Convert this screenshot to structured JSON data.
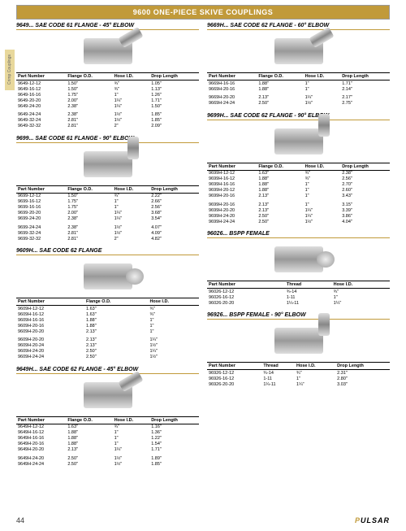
{
  "banner": "9600 ONE-PIECE SKIVE COUPLINGS",
  "sideTab": "Crimp Couplings",
  "pageNum": "44",
  "logo": "PULSAR",
  "cols4": [
    "Part Number",
    "Flange O.D.",
    "Hose I.D.",
    "Drop Length"
  ],
  "cols3": [
    "Part Number",
    "Flange O.D.",
    "Hose I.D."
  ],
  "cols3t": [
    "Part Number",
    "Thread",
    "Hose I.D."
  ],
  "cols4t": [
    "Part Number",
    "Thread",
    "Hose I.D.",
    "Drop Length"
  ],
  "left": [
    {
      "title": "9649...   SAE CODE 61 FLANGE - 45° ELBOW",
      "img": "elbow45",
      "cols": "cols4",
      "gap": [
        5
      ],
      "rows": [
        [
          "9649-12-12",
          "1.50\"",
          "¾\"",
          "1.05\""
        ],
        [
          "9649-16-12",
          "1.50\"",
          "¾\"",
          "1.13\""
        ],
        [
          "9649-16-16",
          "1.75\"",
          "1\"",
          "1.26\""
        ],
        [
          "9649-20-20",
          "2.00\"",
          "1¼\"",
          "1.71\""
        ],
        [
          "9649-24-20",
          "2.38\"",
          "1¼\"",
          "1.50\""
        ],
        [
          "9649-24-24",
          "2.38\"",
          "1½\"",
          "1.85\""
        ],
        [
          "9649-32-24",
          "2.81\"",
          "1½\"",
          "1.85\""
        ],
        [
          "9649-32-32",
          "2.81\"",
          "2\"",
          "2.09\""
        ]
      ]
    },
    {
      "title": "9699...   SAE CODE 61 FLANGE - 90° ELBOW",
      "img": "elbow90",
      "cols": "cols4",
      "gap": [
        5
      ],
      "rows": [
        [
          "9699-12-12",
          "1.50\"",
          "¾\"",
          "2.22\""
        ],
        [
          "9699-16-12",
          "1.75\"",
          "1\"",
          "2.66\""
        ],
        [
          "9699-16-16",
          "1.75\"",
          "1\"",
          "2.56\""
        ],
        [
          "9699-20-20",
          "2.00\"",
          "1¼\"",
          "3.68\""
        ],
        [
          "9699-24-20",
          "2.38\"",
          "1¼\"",
          "3.54\""
        ],
        [
          "9699-24-24",
          "2.38\"",
          "1½\"",
          "4.07\""
        ],
        [
          "9699-32-24",
          "2.81\"",
          "1½\"",
          "4.09\""
        ],
        [
          "9699-32-32",
          "2.81\"",
          "2\"",
          "4.82\""
        ]
      ]
    },
    {
      "title": "9609H...   SAE CODE 62 FLANGE",
      "img": "straight",
      "cols": "cols3",
      "gap": [
        5
      ],
      "rows": [
        [
          "9609H-12-12",
          "1.63\"",
          "¾\""
        ],
        [
          "9609H-16-12",
          "1.63\"",
          "¾\""
        ],
        [
          "9609H-16-16",
          "1.88\"",
          "1\""
        ],
        [
          "9609H-20-16",
          "1.88\"",
          "1\""
        ],
        [
          "9609H-20-20",
          "2.13\"",
          "1\""
        ],
        [
          "9609H-20-20",
          "2.13\"",
          "1¼\""
        ],
        [
          "9609H-20-24",
          "2.13\"",
          "1½\""
        ],
        [
          "9609H-24-20",
          "2.50\"",
          "1¼\""
        ],
        [
          "9609H-24-24",
          "2.50\"",
          "1½\""
        ]
      ]
    },
    {
      "title": "9649H...   SAE CODE 62 FLANGE - 45° ELBOW",
      "img": "elbow45",
      "cols": "cols4",
      "gap": [
        5
      ],
      "rows": [
        [
          "9649H-12-12",
          "1.63\"",
          "¾\"",
          "1.16\""
        ],
        [
          "9649H-16-12",
          "1.88\"",
          "1\"",
          "1.36\""
        ],
        [
          "9649H-16-16",
          "1.88\"",
          "1\"",
          "1.22\""
        ],
        [
          "9649H-20-16",
          "1.88\"",
          "1\"",
          "1.54\""
        ],
        [
          "9649H-20-20",
          "2.13\"",
          "1¼\"",
          "1.71\""
        ],
        [
          "9649H-24-20",
          "2.50\"",
          "1½\"",
          "1.89\""
        ],
        [
          "9649H-24-24",
          "2.50\"",
          "1½\"",
          "1.85\""
        ]
      ]
    }
  ],
  "right": [
    {
      "title": "9669H...   SAE CODE 62 FLANGE - 60° ELBOW",
      "img": "elbow45",
      "cols": "cols4",
      "gap": [
        2
      ],
      "rows": [
        [
          "9669H-16-16",
          "1.88\"",
          "1\"",
          "1.71\""
        ],
        [
          "9669H-20-16",
          "1.88\"",
          "1\"",
          "2.14\""
        ],
        [
          "9669H-20-20",
          "2.13\"",
          "1¼\"",
          "2.17\""
        ],
        [
          "9669H-24-24",
          "2.50\"",
          "1½\"",
          "2.75\""
        ]
      ]
    },
    {
      "title": "9699H...   SAE CODE 62 FLANGE - 90° ELBOW",
      "img": "elbow90",
      "cols": "cols4",
      "gap": [
        5
      ],
      "rows": [
        [
          "9699H-12-12",
          "1.63\"",
          "¾\"",
          "2.38\""
        ],
        [
          "9699H-16-12",
          "1.88\"",
          "¾\"",
          "2.56\""
        ],
        [
          "9699H-16-16",
          "1.88\"",
          "1\"",
          "2.70\""
        ],
        [
          "9699H-20-12",
          "1.88\"",
          "1\"",
          "2.60\""
        ],
        [
          "9699H-20-16",
          "2.13\"",
          "1\"",
          "3.43\""
        ],
        [
          "9699H-20-16",
          "2.13\"",
          "1\"",
          "3.15\""
        ],
        [
          "9699H-20-20",
          "2.13\"",
          "1¼\"",
          "3.39\""
        ],
        [
          "9699H-24-20",
          "2.50\"",
          "1¼\"",
          "3.86\""
        ],
        [
          "9699H-24-24",
          "2.50\"",
          "1½\"",
          "4.04\""
        ]
      ]
    },
    {
      "title": "96026...   BSPP FEMALE",
      "img": "straight",
      "cols": "cols3t",
      "gap": [],
      "rows": [
        [
          "96026-12-12",
          "¾-14",
          "¾\""
        ],
        [
          "96026-16-12",
          "1-11",
          "1\""
        ],
        [
          "96026-20-20",
          "1¼-11",
          "1¼\""
        ]
      ]
    },
    {
      "title": "96926...   BSPP FEMALE - 90° ELBOW",
      "img": "elbow90",
      "cols": "cols4t",
      "gap": [],
      "rows": [
        [
          "96926-12-12",
          "¾-14",
          "¾\"",
          "2.31\""
        ],
        [
          "96926-16-12",
          "1-11",
          "1\"",
          "2.80\""
        ],
        [
          "96926-20-20",
          "1¼-11",
          "1¼\"",
          "3.03\""
        ]
      ]
    }
  ]
}
